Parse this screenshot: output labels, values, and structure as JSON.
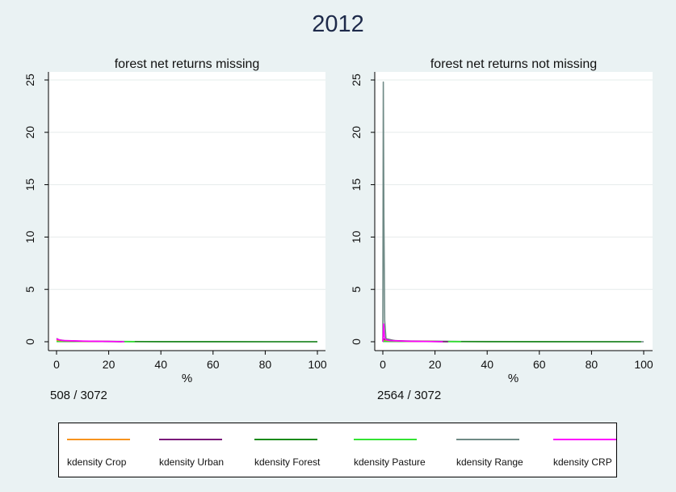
{
  "title": "2012",
  "chart_data": [
    {
      "type": "line",
      "title": "forest net returns missing",
      "xlabel": "%",
      "ylabel": "",
      "xlim": [
        0,
        100
      ],
      "ylim": [
        0,
        25
      ],
      "xticks": [
        0,
        20,
        40,
        60,
        80,
        100
      ],
      "yticks": [
        0,
        5,
        10,
        15,
        20,
        25
      ],
      "grid": true,
      "note": "508 / 3072",
      "series": [
        {
          "name": "kdensity Crop",
          "x": [
            0,
            2,
            5,
            10,
            20
          ],
          "y": [
            0.15,
            0.1,
            0.07,
            0.05,
            0.02
          ]
        },
        {
          "name": "kdensity Urban",
          "x": [
            0,
            1,
            3,
            8,
            15,
            25
          ],
          "y": [
            0.3,
            0.18,
            0.1,
            0.06,
            0.03,
            0.01
          ]
        },
        {
          "name": "kdensity Forest",
          "x": [
            0,
            20,
            40,
            60,
            80,
            100
          ],
          "y": [
            0.02,
            0.02,
            0.01,
            0.01,
            0.0,
            0.0
          ]
        },
        {
          "name": "kdensity Pasture",
          "x": [
            0,
            5,
            15,
            30
          ],
          "y": [
            0.05,
            0.04,
            0.02,
            0.01
          ]
        },
        {
          "name": "kdensity Range",
          "x": [
            0,
            20,
            50,
            80,
            100
          ],
          "y": [
            0.05,
            0.02,
            0.01,
            0.0,
            0.0
          ]
        },
        {
          "name": "kdensity CRP",
          "x": [
            0,
            2,
            10,
            20,
            26
          ],
          "y": [
            0.25,
            0.12,
            0.06,
            0.03,
            0.0
          ]
        }
      ]
    },
    {
      "type": "line",
      "title": "forest net returns not missing",
      "xlabel": "%",
      "ylabel": "",
      "xlim": [
        0,
        100
      ],
      "ylim": [
        0,
        25
      ],
      "xticks": [
        0,
        20,
        40,
        60,
        80,
        100
      ],
      "yticks": [
        0,
        5,
        10,
        15,
        20,
        25
      ],
      "grid": true,
      "note": "2564 / 3072",
      "series": [
        {
          "name": "kdensity Crop",
          "x": [
            0,
            2,
            5,
            10,
            20
          ],
          "y": [
            0.2,
            0.12,
            0.08,
            0.05,
            0.02
          ]
        },
        {
          "name": "kdensity Urban",
          "x": [
            0,
            1,
            3,
            8,
            15,
            25
          ],
          "y": [
            0.3,
            0.2,
            0.12,
            0.07,
            0.03,
            0.01
          ]
        },
        {
          "name": "kdensity Forest",
          "x": [
            0,
            20,
            40,
            60,
            80,
            99
          ],
          "y": [
            0.03,
            0.02,
            0.01,
            0.01,
            0.0,
            0.0
          ]
        },
        {
          "name": "kdensity Pasture",
          "x": [
            0,
            5,
            15,
            30
          ],
          "y": [
            0.06,
            0.04,
            0.02,
            0.01
          ]
        },
        {
          "name": "kdensity Range",
          "x": [
            0,
            0.2,
            0.4,
            0.7,
            1.2,
            5,
            30,
            60,
            100
          ],
          "y": [
            0.0,
            24.8,
            12.0,
            2.0,
            0.3,
            0.08,
            0.02,
            0.01,
            0.0
          ]
        },
        {
          "name": "kdensity CRP",
          "x": [
            0,
            0.3,
            0.6,
            1,
            3,
            10,
            23
          ],
          "y": [
            0.0,
            1.7,
            0.5,
            0.2,
            0.1,
            0.05,
            0.0
          ]
        }
      ]
    }
  ],
  "legend": [
    {
      "label": "kdensity Crop",
      "color": "#f7931e"
    },
    {
      "label": "kdensity Urban",
      "color": "#7a1a7a"
    },
    {
      "label": "kdensity Forest",
      "color": "#1a8a1a"
    },
    {
      "label": "kdensity Pasture",
      "color": "#33e333"
    },
    {
      "label": "kdensity Range",
      "color": "#6f8a86"
    },
    {
      "label": "kdensity CRP",
      "color": "#ff00ff"
    }
  ]
}
